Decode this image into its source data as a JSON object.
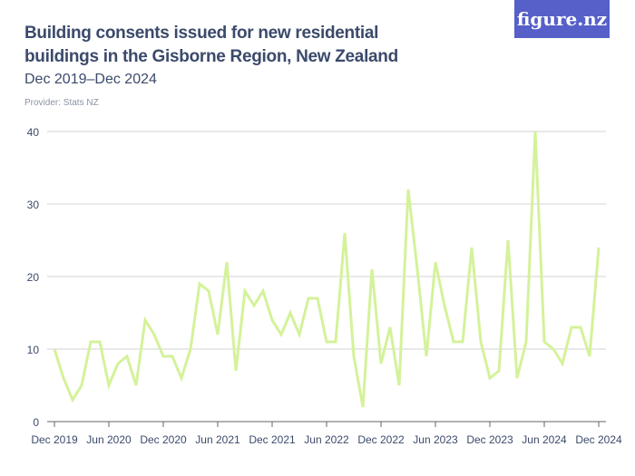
{
  "title": "Building consents issued for new residential buildings in the Gisborne Region, New Zealand",
  "subtitle": "Dec 2019–Dec 2024",
  "provider": "Provider: Stats NZ",
  "logo": "figure.nz",
  "colors": {
    "line": "#d4f29a",
    "logo_bg": "#5660c8",
    "text": "#3b4a6b"
  },
  "chart_data": {
    "type": "line",
    "title": "Building consents issued for new residential buildings in the Gisborne Region, New Zealand",
    "xlabel": "",
    "ylabel": "",
    "ylim": [
      0,
      40
    ],
    "yticks": [
      0,
      10,
      20,
      30,
      40
    ],
    "xticks": [
      "Dec 2019",
      "Jun 2020",
      "Dec 2020",
      "Jun 2021",
      "Dec 2021",
      "Jun 2022",
      "Dec 2022",
      "Jun 2023",
      "Dec 2023",
      "Jun 2024",
      "Dec 2024"
    ],
    "x_start": "Dec 2019",
    "x_end": "Dec 2024",
    "frequency": "monthly",
    "grid": true,
    "values": [
      10,
      6,
      3,
      5,
      11,
      11,
      5,
      8,
      9,
      5,
      14,
      12,
      9,
      9,
      6,
      10,
      19,
      18,
      12,
      22,
      7,
      18,
      16,
      18,
      14,
      12,
      15,
      12,
      17,
      17,
      11,
      11,
      26,
      9,
      2,
      21,
      8,
      13,
      5,
      32,
      21,
      9,
      22,
      16,
      11,
      11,
      24,
      11,
      6,
      7,
      25,
      6,
      11,
      40,
      11,
      10,
      8,
      13,
      13,
      9,
      24
    ]
  }
}
